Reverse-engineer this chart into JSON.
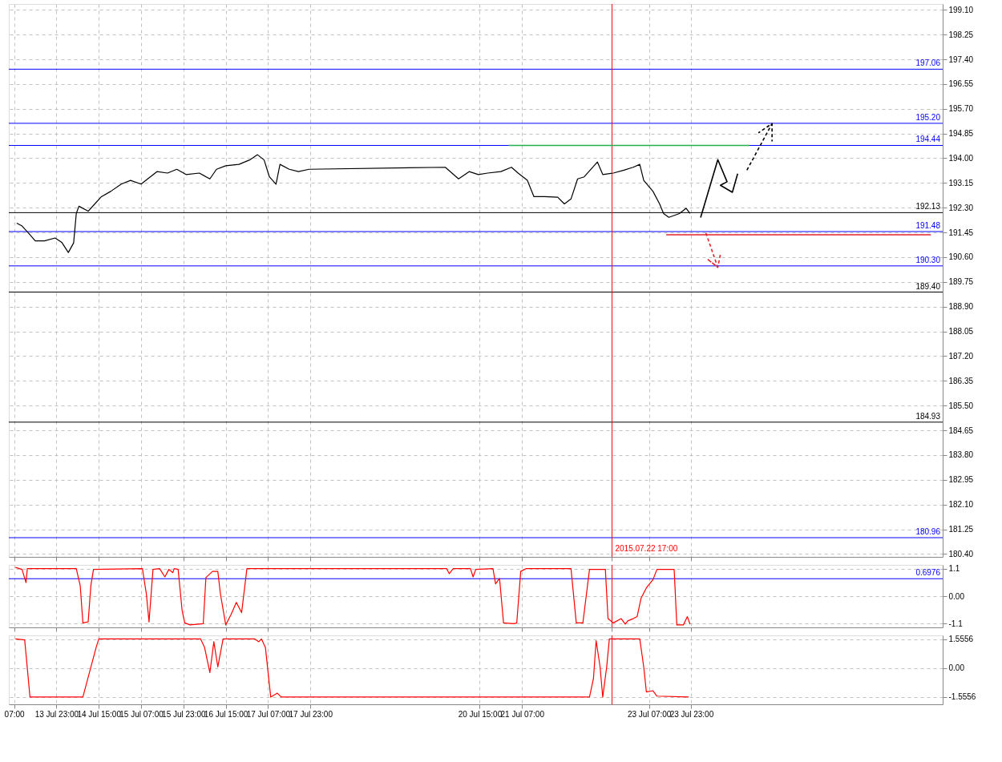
{
  "chart_data": [
    {
      "type": "line",
      "xlim": [
        "2015-07-13T05:00",
        "2015-07-27T22:00"
      ],
      "ylim": [
        180.3,
        199.3
      ],
      "grid": true,
      "tick_labels": "y",
      "xticks": [
        {
          "value": "2015-07-13T07:00",
          "label": null
        },
        {
          "value": "2015-07-13T23:00",
          "label": null
        },
        {
          "value": "2015-07-14T15:00",
          "label": null
        },
        {
          "value": "2015-07-15T07:00",
          "label": null
        },
        {
          "value": "2015-07-15T23:00",
          "label": null
        },
        {
          "value": "2015-07-16T15:00",
          "label": null
        },
        {
          "value": "2015-07-17T07:00",
          "label": null
        },
        {
          "value": "2015-07-17T23:00",
          "label": null
        },
        {
          "value": "2015-07-20T15:00",
          "label": null
        },
        {
          "value": "2015-07-21T07:00",
          "label": null
        },
        {
          "value": "2015-07-22T17:00",
          "label": null
        },
        {
          "value": "2015-07-23T07:00",
          "label": null
        },
        {
          "value": "2015-07-23T23:00",
          "label": null
        }
      ],
      "yticks": [
        {
          "value": 180.4,
          "label": "180.40"
        },
        181.25,
        {
          "value": 182.1,
          "label": "182.10"
        },
        182.95,
        {
          "value": 183.8,
          "label": "183.80"
        },
        184.65,
        {
          "value": 185.5,
          "label": "185.50"
        },
        186.35,
        {
          "value": 187.2,
          "label": "187.20"
        },
        188.05,
        {
          "value": 188.9,
          "label": "188.90"
        },
        189.75,
        {
          "value": 190.6,
          "label": "190.60"
        },
        191.45,
        {
          "value": 192.3,
          "label": "192.30"
        },
        193.15,
        {
          "value": 194.0,
          "label": "194.00"
        },
        194.85,
        {
          "value": 195.7,
          "label": "195.70"
        },
        196.55,
        {
          "value": 197.4,
          "label": "197.40"
        },
        198.25,
        {
          "value": 199.1,
          "label": "199.10"
        }
      ],
      "series": [
        {
          "color": "#000000",
          "x": [
            "2015-07-13T08:00",
            "2015-07-13T10:00",
            "2015-07-13T12:30",
            "2015-07-13T15:00",
            "2015-07-13T18:30",
            "2015-07-13T22:30",
            "2015-07-14T01:00",
            "2015-07-14T03:30",
            "2015-07-14T05:30",
            "2015-07-14T06:30",
            "2015-07-14T07:30",
            "2015-07-14T11:00",
            "2015-07-14T13:30",
            "2015-07-14T16:00",
            "2015-07-14T19:30",
            "2015-07-14T23:30",
            "2015-07-15T03:00",
            "2015-07-15T07:00",
            "2015-07-15T09:30",
            "2015-07-15T13:00",
            "2015-07-15T17:00",
            "2015-07-15T20:30",
            "2015-07-16T00:00",
            "2015-07-16T05:00",
            "2015-07-16T09:00",
            "2015-07-16T11:30",
            "2015-07-16T15:00",
            "2015-07-16T20:00",
            "2015-07-17T00:00",
            "2015-07-17T03:00",
            "2015-07-17T05:30",
            "2015-07-17T07:30",
            "2015-07-17T10:00",
            "2015-07-17T11:30",
            "2015-07-17T15:00",
            "2015-07-17T18:30",
            "2015-07-17T22:30",
            "2015-07-20T02:00",
            "2015-07-20T04:30",
            "2015-07-20T07:00",
            "2015-07-20T11:00",
            "2015-07-20T14:30",
            "2015-07-20T18:00",
            "2015-07-20T23:00",
            "2015-07-21T03:00",
            "2015-07-21T05:30",
            "2015-07-21T09:00",
            "2015-07-21T11:30",
            "2015-07-21T15:30",
            "2015-07-21T20:30",
            "2015-07-21T23:00",
            "2015-07-22T01:30",
            "2015-07-22T04:00",
            "2015-07-22T06:30",
            "2015-07-22T09:00",
            "2015-07-22T11:30",
            "2015-07-22T13:30",
            "2015-07-22T17:30",
            "2015-07-22T21:30",
            "2015-07-23T01:00",
            "2015-07-23T03:30",
            "2015-07-23T05:00",
            "2015-07-23T08:30",
            "2015-07-23T11:00",
            "2015-07-23T12:30",
            "2015-07-23T14:30",
            "2015-07-23T18:30",
            "2015-07-23T21:00",
            "2015-07-23T22:30"
          ],
          "values": [
            191.77,
            191.67,
            191.42,
            191.16,
            191.16,
            191.26,
            191.11,
            190.76,
            191.09,
            192.1,
            192.35,
            192.18,
            192.43,
            192.68,
            192.86,
            193.11,
            193.24,
            193.11,
            193.29,
            193.54,
            193.49,
            193.62,
            193.44,
            193.49,
            193.29,
            193.62,
            193.74,
            193.79,
            193.94,
            194.12,
            193.94,
            193.36,
            193.11,
            193.79,
            193.62,
            193.54,
            193.62,
            193.69,
            193.49,
            193.29,
            193.54,
            193.44,
            193.49,
            193.54,
            193.69,
            193.49,
            193.24,
            192.68,
            192.68,
            192.66,
            192.43,
            192.6,
            193.29,
            193.36,
            193.62,
            193.87,
            193.44,
            193.49,
            193.59,
            193.69,
            193.79,
            193.24,
            192.86,
            192.43,
            192.1,
            191.97,
            192.1,
            192.28,
            192.1
          ]
        },
        {
          "color": "#22b14c",
          "x": [
            "2015-07-21T02:00",
            "2015-07-24T21:00"
          ],
          "values": [
            194.44,
            194.44
          ]
        },
        {
          "color": "#e8202a",
          "x": [
            "2015-07-23T13:30",
            "2015-07-27T17:30"
          ],
          "values": [
            191.37,
            191.37
          ]
        },
        {
          "color": "#000000",
          "x": [
            "2015-07-24T02:30",
            "2015-07-24T09:00",
            "2015-07-24T12:30",
            "2015-07-24T10:00",
            "2015-07-24T14:30",
            "2015-07-24T16:30"
          ],
          "values": [
            191.96,
            193.95,
            193.19,
            193.07,
            192.83,
            193.47
          ]
        },
        {
          "color": "#000000",
          "line_style": "dashed",
          "x": [
            "2015-07-24T20:00",
            "2015-07-25T05:30",
            "2015-07-25T00:30",
            "2015-07-25T05:30",
            "2015-07-25T05:30"
          ],
          "values": [
            193.59,
            195.19,
            194.88,
            195.19,
            194.58
          ]
        },
        {
          "color": "#e8202a",
          "line_style": "dashed",
          "x": [
            "2015-07-24T04:30",
            "2015-07-24T09:00",
            "2015-07-24T05:00",
            "2015-07-24T09:00",
            "2015-07-24T10:00"
          ],
          "values": [
            191.43,
            190.25,
            190.54,
            190.25,
            190.71
          ]
        }
      ],
      "ref_lines": [
        {
          "axis": "y",
          "value": 197.06,
          "label": "197.06",
          "color": "#0000ff"
        },
        {
          "axis": "y",
          "value": 195.2,
          "label": "195.20",
          "color": "#0000ff"
        },
        {
          "axis": "y",
          "value": 194.44,
          "label": "194.44",
          "color": "#0000ff"
        },
        {
          "axis": "y",
          "value": 192.13,
          "label": "192.13",
          "color": "#000000"
        },
        {
          "axis": "y",
          "value": 191.48,
          "label": "191.48",
          "color": "#0000ff"
        },
        {
          "axis": "y",
          "value": 190.3,
          "label": "190.30",
          "color": "#0000ff"
        },
        {
          "axis": "y",
          "value": 189.4,
          "label": "189.40",
          "color": "#000000"
        },
        {
          "axis": "y",
          "value": 184.93,
          "label": "184.93",
          "color": "#000000"
        },
        {
          "axis": "y",
          "value": 180.96,
          "label": "180.96",
          "color": "#0000ff"
        },
        {
          "axis": "x",
          "value": "2015-07-22T17:00",
          "label": "2015.07.22 17:00",
          "color": "#ff0000"
        }
      ]
    },
    {
      "type": "line",
      "xlim": [
        "2015-07-13T05:00",
        "2015-07-27T22:00"
      ],
      "ylim": [
        -1.25,
        1.25
      ],
      "grid": true,
      "tick_labels": "y",
      "xticks": [
        {
          "value": "2015-07-13T07:00",
          "label": null
        },
        {
          "value": "2015-07-13T23:00",
          "label": null
        },
        {
          "value": "2015-07-14T15:00",
          "label": null
        },
        {
          "value": "2015-07-15T07:00",
          "label": null
        },
        {
          "value": "2015-07-15T23:00",
          "label": null
        },
        {
          "value": "2015-07-16T15:00",
          "label": null
        },
        {
          "value": "2015-07-17T07:00",
          "label": null
        },
        {
          "value": "2015-07-17T23:00",
          "label": null
        },
        {
          "value": "2015-07-20T15:00",
          "label": null
        },
        {
          "value": "2015-07-21T07:00",
          "label": null
        },
        {
          "value": "2015-07-22T17:00",
          "label": null
        },
        {
          "value": "2015-07-23T07:00",
          "label": null
        },
        {
          "value": "2015-07-23T23:00",
          "label": null
        }
      ],
      "yticks": [
        1.1,
        {
          "value": 0,
          "label": "0.00"
        },
        -1.1
      ],
      "series": [
        {
          "color": "#ff0000",
          "x": [
            "2015-07-13T07:30",
            "2015-07-13T10:00",
            "2015-07-13T11:30",
            "2015-07-13T12:00",
            "2015-07-14T06:30",
            "2015-07-14T08:00",
            "2015-07-14T09:00",
            "2015-07-14T11:00",
            "2015-07-14T12:00",
            "2015-07-14T13:00",
            "2015-07-15T07:30",
            "2015-07-15T09:00",
            "2015-07-15T10:00",
            "2015-07-15T11:30",
            "2015-07-15T14:00",
            "2015-07-15T16:00",
            "2015-07-15T17:30",
            "2015-07-15T19:00",
            "2015-07-15T19:30",
            "2015-07-15T21:00",
            "2015-07-15T22:30",
            "2015-07-15T23:30",
            "2015-07-16T01:30",
            "2015-07-16T06:30",
            "2015-07-16T07:30",
            "2015-07-16T10:00",
            "2015-07-16T12:00",
            "2015-07-16T13:00",
            "2015-07-16T15:00",
            "2015-07-16T17:00",
            "2015-07-16T19:00",
            "2015-07-16T21:00",
            "2015-07-16T23:00",
            "2015-07-20T02:30",
            "2015-07-20T03:30",
            "2015-07-20T05:00",
            "2015-07-20T11:30",
            "2015-07-20T12:30",
            "2015-07-20T13:30",
            "2015-07-20T20:00",
            "2015-07-20T21:00",
            "2015-07-20T22:30",
            "2015-07-21T00:00",
            "2015-07-21T04:00",
            "2015-07-21T05:00",
            "2015-07-21T06:30",
            "2015-07-21T08:30",
            "2015-07-22T01:30",
            "2015-07-22T03:30",
            "2015-07-22T06:00",
            "2015-07-22T08:30",
            "2015-07-22T14:30",
            "2015-07-22T15:30",
            "2015-07-22T17:30",
            "2015-07-22T20:30",
            "2015-07-22T22:00",
            "2015-07-22T23:00",
            "2015-07-23T01:00",
            "2015-07-23T02:30",
            "2015-07-23T04:00",
            "2015-07-23T06:00",
            "2015-07-23T08:30",
            "2015-07-23T10:00",
            "2015-07-23T16:30",
            "2015-07-23T17:30",
            "2015-07-23T20:00",
            "2015-07-23T21:30",
            "2015-07-23T22:30"
          ],
          "values": [
            1.15,
            1.07,
            0.54,
            1.1,
            1.1,
            0.41,
            -1.07,
            -1.03,
            0.41,
            1.07,
            1.1,
            0.08,
            -1.03,
            1.07,
            1.1,
            0.77,
            1.07,
            0.94,
            1.1,
            1.07,
            -0.57,
            -1.07,
            -1.15,
            -1.1,
            0.74,
            0.99,
            0.99,
            0.08,
            -1.15,
            -0.74,
            -0.25,
            -0.66,
            1.1,
            1.1,
            0.9,
            1.1,
            1.1,
            0.77,
            1.07,
            1.1,
            0.49,
            0.71,
            -1.07,
            -1.1,
            -1.07,
            0.99,
            1.1,
            1.1,
            -1.07,
            -1.07,
            1.07,
            1.07,
            -0.9,
            -1.07,
            -0.9,
            -1.12,
            -0.99,
            -0.9,
            -0.82,
            -0.08,
            0.33,
            0.66,
            1.07,
            1.07,
            -1.15,
            -1.15,
            -0.82,
            -1.12
          ]
        }
      ],
      "ref_lines": [
        {
          "axis": "y",
          "value": 0.6976,
          "label": "0.6976",
          "color": "#0000ff"
        },
        {
          "axis": "x",
          "value": "2015-07-22T17:00",
          "color": "#ff0000"
        }
      ]
    },
    {
      "type": "line",
      "xlim": [
        "2015-07-13T05:00",
        "2015-07-27T22:00"
      ],
      "ylim": [
        -1.95,
        1.75
      ],
      "grid": true,
      "xticks": [
        {
          "value": "2015-07-13T07:00",
          "label": "07:00"
        },
        {
          "value": "2015-07-13T23:00",
          "label": "13 Jul 23:00"
        },
        {
          "value": "2015-07-14T15:00",
          "label": "14 Jul 15:00"
        },
        {
          "value": "2015-07-15T07:00",
          "label": "15 Jul 07:00"
        },
        {
          "value": "2015-07-15T23:00",
          "label": "15 Jul 23:00"
        },
        {
          "value": "2015-07-16T15:00",
          "label": "16 Jul 15:00"
        },
        {
          "value": "2015-07-17T07:00",
          "label": "17 Jul 07:00"
        },
        {
          "value": "2015-07-17T23:00",
          "label": "17 Jul 23:00"
        },
        {
          "value": "2015-07-20T15:00",
          "label": "20 Jul 15:00"
        },
        {
          "value": "2015-07-21T07:00",
          "label": "21 Jul 07:00"
        },
        {
          "value": "2015-07-23T07:00",
          "label": "23 Jul 07:00"
        },
        {
          "value": "2015-07-23T23:00",
          "label": "23 Jul 23:00"
        }
      ],
      "yticks": [
        1.5556,
        {
          "value": 0,
          "label": "0.00"
        },
        -1.5556
      ],
      "series": [
        {
          "color": "#ff0000",
          "x": [
            "2015-07-13T07:30",
            "2015-07-13T11:00",
            "2015-07-13T13:00",
            "2015-07-14T09:00",
            "2015-07-14T14:00",
            "2015-07-14T15:00",
            "2015-07-16T05:30",
            "2015-07-16T07:00",
            "2015-07-16T09:00",
            "2015-07-16T10:30",
            "2015-07-16T12:00",
            "2015-07-16T14:00",
            "2015-07-17T02:00",
            "2015-07-17T03:30",
            "2015-07-17T04:30",
            "2015-07-17T06:00",
            "2015-07-17T08:00",
            "2015-07-17T10:30",
            "2015-07-17T12:00",
            "2015-07-22T08:30",
            "2015-07-22T10:00",
            "2015-07-22T11:00",
            "2015-07-22T12:30",
            "2015-07-22T13:30",
            "2015-07-22T15:00",
            "2015-07-22T16:00",
            "2015-07-23T03:30",
            "2015-07-23T05:00",
            "2015-07-23T06:00",
            "2015-07-23T08:30",
            "2015-07-23T10:00",
            "2015-07-23T22:00"
          ],
          "values": [
            1.56,
            1.51,
            -1.56,
            -1.56,
            1.1,
            1.56,
            1.56,
            1.1,
            -0.25,
            1.41,
            0.06,
            1.56,
            1.56,
            1.41,
            1.56,
            1.1,
            -1.56,
            -1.35,
            -1.56,
            -1.56,
            -0.56,
            1.47,
            0.06,
            -1.56,
            0.06,
            1.56,
            1.56,
            0.06,
            -1.29,
            -1.22,
            -1.51,
            -1.56
          ]
        }
      ],
      "ref_lines": [
        {
          "axis": "x",
          "value": "2015-07-22T17:00",
          "color": "#ff0000"
        }
      ]
    }
  ]
}
